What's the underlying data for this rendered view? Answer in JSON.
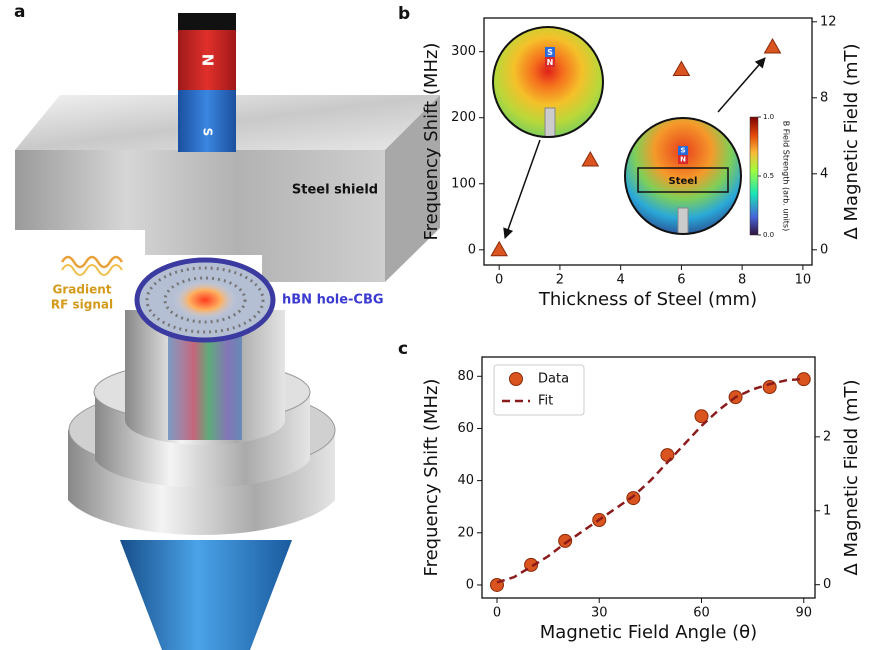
{
  "panel_a": {
    "label": "a",
    "magnet_north": "N",
    "magnet_south": "S",
    "steel_label": "Steel shield",
    "rf_label": [
      "Gradient",
      "RF signal"
    ],
    "device_label": "hBN hole-CBG"
  },
  "chart_data": [
    {
      "type": "scatter",
      "label": "b",
      "xlabel": "Thickness of Steel (mm)",
      "ylabel": "Frequency Shift (MHz)",
      "y2label": "Δ Magnetic Field (mT)",
      "series": [
        {
          "color": "#d9541e",
          "marker": "triangle",
          "x": [
            0,
            3,
            6,
            9
          ],
          "values": [
            0,
            136,
            273,
            307
          ]
        }
      ],
      "xlim": [
        -0.5,
        10.3
      ],
      "ylim": [
        -23,
        351
      ],
      "y2lim": [
        -0.8,
        12.2
      ],
      "xticks": [
        0,
        2,
        4,
        6,
        8,
        10
      ],
      "yticks": [
        0,
        100,
        200,
        300
      ],
      "y2ticks": [
        0,
        4,
        8,
        12
      ],
      "insets": {
        "magnet_s": "S",
        "magnet_n": "N",
        "steel": "Steel",
        "colorbar_label": "B Field Strength (arb. units)",
        "colorbar_ticks": [
          {
            "value": 0,
            "label": "0.0"
          },
          {
            "value": 0.5,
            "label": "0.5"
          },
          {
            "value": 1,
            "label": "1.0"
          }
        ]
      }
    },
    {
      "type": "scatter",
      "label": "c",
      "xlabel": "Magnetic Field Angle (θ)",
      "ylabel": "Frequency Shift (MHz)",
      "y2label": "Δ Magnetic Field (mT)",
      "series": [
        {
          "name": "Data",
          "color": "#d9541e",
          "marker": "circle",
          "x": [
            0,
            10,
            20,
            30,
            40,
            50,
            60,
            70,
            80,
            90
          ],
          "values": [
            0,
            7.7,
            16.9,
            24.9,
            33.3,
            49.8,
            64.7,
            72,
            75.9,
            78.9
          ]
        },
        {
          "name": "Fit",
          "color": "#8b1a1a",
          "marker": "dashed-line",
          "x": [
            0,
            5,
            10,
            15,
            20,
            25,
            30,
            35,
            40,
            45,
            50,
            55,
            60,
            65,
            70,
            75,
            80,
            85,
            90
          ],
          "values": [
            1,
            3,
            7,
            11,
            16,
            20.5,
            25,
            29.5,
            34,
            40,
            47,
            54,
            61,
            67,
            72,
            75,
            77,
            78.5,
            79
          ]
        }
      ],
      "xlim": [
        -4.4,
        93.3
      ],
      "ylim": [
        -5,
        87.4
      ],
      "y2lim": [
        -0.18,
        3.08
      ],
      "xticks": [
        0,
        30,
        60,
        90
      ],
      "yticks": [
        0,
        20,
        40,
        60,
        80
      ],
      "y2ticks": [
        0,
        1,
        2
      ],
      "legend": "upper left"
    }
  ]
}
